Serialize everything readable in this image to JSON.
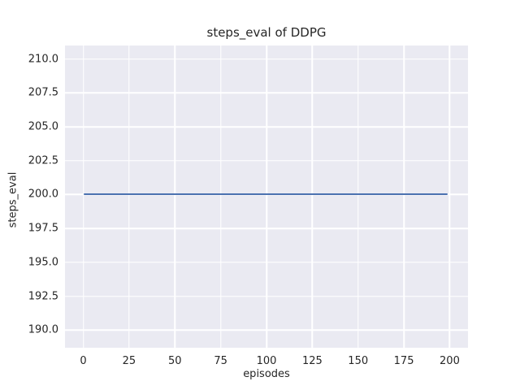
{
  "colors": {
    "figure_bg": "#ffffff",
    "axes_bg": "#eaeaf2",
    "grid": "#ffffff",
    "text": "#262626",
    "line": "#4c72b0"
  },
  "chart_data": {
    "type": "line",
    "title": "steps_eval of DDPG",
    "xlabel": "episodes",
    "ylabel": "steps_eval",
    "style": "seaborn-darkgrid",
    "grid": true,
    "legend": false,
    "xlim": [
      -10,
      210
    ],
    "ylim": [
      188.7,
      211.0
    ],
    "x_ticks": [
      {
        "value": 0,
        "label": "0"
      },
      {
        "value": 25,
        "label": "25"
      },
      {
        "value": 50,
        "label": "50"
      },
      {
        "value": 75,
        "label": "75"
      },
      {
        "value": 100,
        "label": "100"
      },
      {
        "value": 125,
        "label": "125"
      },
      {
        "value": 150,
        "label": "150"
      },
      {
        "value": 175,
        "label": "175"
      },
      {
        "value": 200,
        "label": "200"
      }
    ],
    "y_ticks": [
      {
        "value": 190.0,
        "label": "190.0"
      },
      {
        "value": 192.5,
        "label": "192.5"
      },
      {
        "value": 195.0,
        "label": "195.0"
      },
      {
        "value": 197.5,
        "label": "197.5"
      },
      {
        "value": 200.0,
        "label": "200.0"
      },
      {
        "value": 202.5,
        "label": "202.5"
      },
      {
        "value": 205.0,
        "label": "205.0"
      },
      {
        "value": 207.5,
        "label": "207.5"
      },
      {
        "value": 210.0,
        "label": "210.0"
      }
    ],
    "series": [
      {
        "name": "DDPG",
        "color": "#4c72b0",
        "linewidth": 2,
        "x": [
          0,
          199
        ],
        "y": [
          200.0,
          200.0
        ]
      }
    ]
  }
}
